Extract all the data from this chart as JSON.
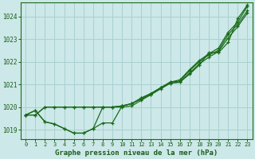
{
  "title": "Graphe pression niveau de la mer (hPa)",
  "bg_color": "#cce8e8",
  "grid_color": "#aad0d0",
  "line_color": "#1a6b1a",
  "tick_color": "#1a5c1a",
  "xlim": [
    -0.5,
    23.5
  ],
  "ylim": [
    1018.6,
    1024.6
  ],
  "yticks": [
    1019,
    1020,
    1021,
    1022,
    1023,
    1024
  ],
  "xticks": [
    0,
    1,
    2,
    3,
    4,
    5,
    6,
    7,
    8,
    9,
    10,
    11,
    12,
    13,
    14,
    15,
    16,
    17,
    18,
    19,
    20,
    21,
    22,
    23
  ],
  "series": [
    [
      1019.65,
      1019.85,
      1019.35,
      1019.25,
      1019.05,
      1018.85,
      1018.85,
      1019.05,
      1019.3,
      1019.3,
      1020.05,
      1020.15,
      1020.35,
      1020.55,
      1020.85,
      1021.05,
      1021.1,
      1021.45,
      1021.85,
      1022.4,
      1022.4,
      1022.85,
      1023.9,
      1024.5
    ],
    [
      1019.65,
      1019.65,
      1020.0,
      1020.0,
      1020.0,
      1020.0,
      1020.0,
      1020.0,
      1020.0,
      1020.0,
      1020.0,
      1020.05,
      1020.3,
      1020.55,
      1020.8,
      1021.05,
      1021.1,
      1021.5,
      1021.9,
      1022.2,
      1022.45,
      1023.05,
      1023.55,
      1024.15
    ],
    [
      1019.65,
      1019.65,
      1020.0,
      1020.0,
      1020.0,
      1020.0,
      1020.0,
      1020.0,
      1020.0,
      1020.0,
      1020.05,
      1020.15,
      1020.4,
      1020.6,
      1020.85,
      1021.1,
      1021.15,
      1021.6,
      1022.0,
      1022.3,
      1022.5,
      1023.2,
      1023.65,
      1024.25
    ],
    [
      1019.65,
      1019.85,
      1019.35,
      1019.25,
      1019.05,
      1018.85,
      1018.85,
      1019.05,
      1020.0,
      1020.0,
      1020.05,
      1020.15,
      1020.4,
      1020.6,
      1020.85,
      1021.1,
      1021.2,
      1021.65,
      1022.05,
      1022.35,
      1022.6,
      1023.3,
      1023.75,
      1024.45
    ]
  ]
}
